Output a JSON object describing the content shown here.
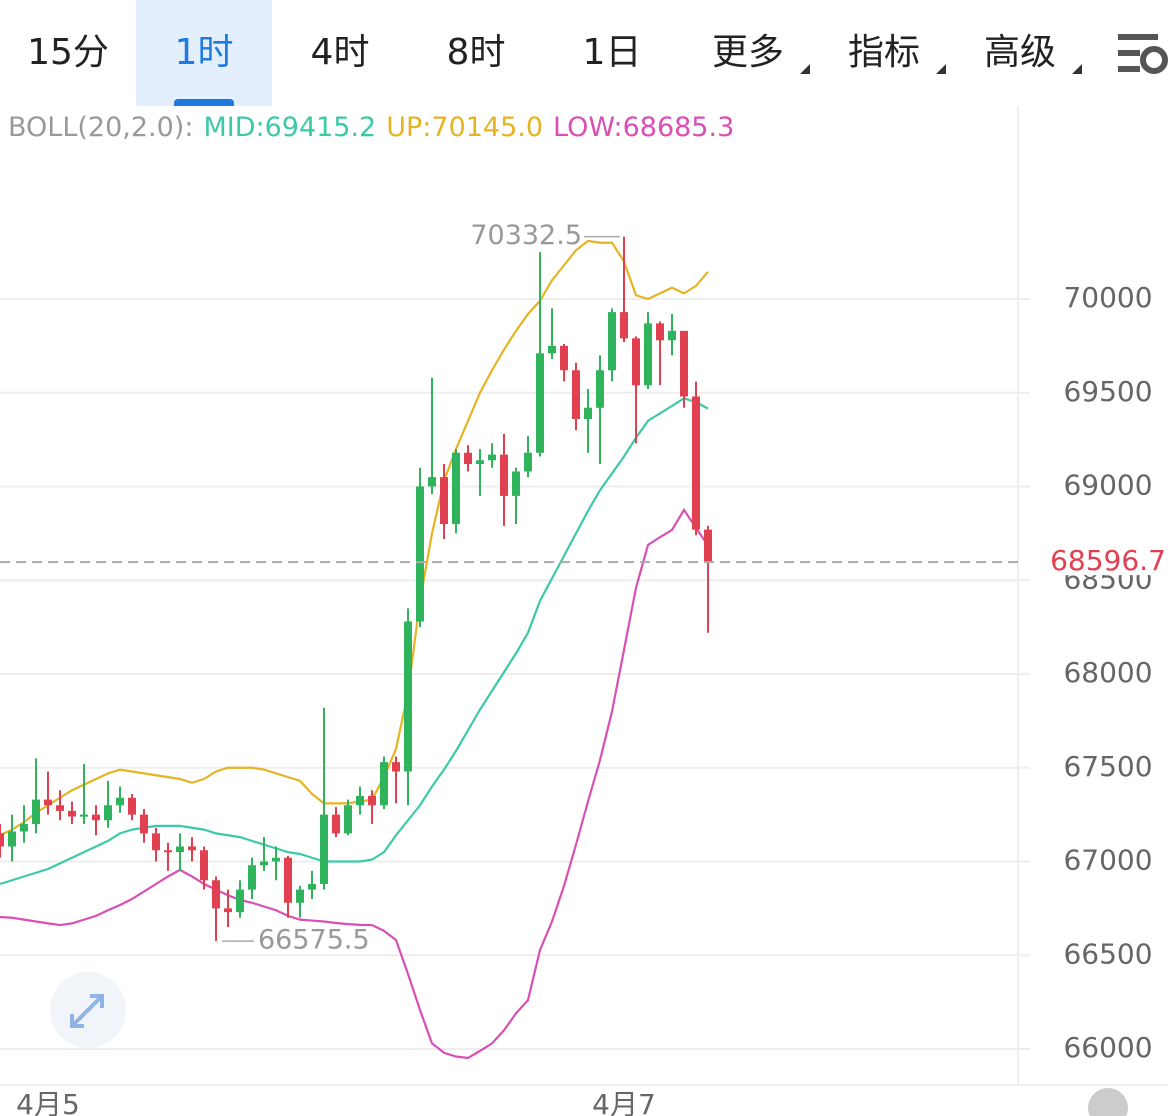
{
  "header": {
    "tabs": [
      "15分",
      "1时",
      "4时",
      "8时",
      "1日",
      "更多",
      "指标",
      "高级"
    ],
    "active_tab": 1
  },
  "chart_data": {
    "type": "candlestick",
    "indicator": "BOLL(20,2.0):",
    "categories": [
      null,
      null,
      null,
      null,
      "4月5",
      null,
      null,
      null,
      null,
      null,
      null,
      null,
      null,
      null,
      null,
      null,
      null,
      null,
      null,
      null,
      null,
      null,
      null,
      null,
      null,
      null,
      null,
      null,
      null,
      null,
      null,
      null,
      null,
      null,
      null,
      null,
      null,
      null,
      null,
      null,
      null,
      null,
      null,
      null,
      null,
      null,
      null,
      null,
      null,
      null,
      null,
      null,
      "4月7",
      null,
      null,
      null,
      null,
      null,
      null,
      null
    ],
    "open": [
      67150,
      67080,
      67160,
      67200,
      67330,
      67300,
      67270,
      67240,
      67250,
      67220,
      67300,
      67340,
      67250,
      67150,
      67060,
      67050,
      67080,
      67060,
      66900,
      66750,
      66730,
      66850,
      66980,
      67000,
      67020,
      66780,
      66850,
      66880,
      67250,
      67150,
      67300,
      67350,
      67300,
      67530,
      67480,
      68280,
      69000,
      69050,
      68800,
      69180,
      69120,
      69140,
      69170,
      68950,
      69080,
      69180,
      69710,
      69750,
      69620,
      69360,
      69420,
      69620,
      69930,
      69790,
      69540,
      69870,
      69780,
      69830,
      69480,
      68770
    ],
    "high": [
      67200,
      67250,
      67300,
      67550,
      67480,
      67380,
      67320,
      67520,
      67300,
      67430,
      67400,
      67360,
      67280,
      67180,
      67100,
      67150,
      67130,
      67080,
      66920,
      66850,
      66900,
      67020,
      67130,
      67080,
      67030,
      66870,
      66950,
      67820,
      67290,
      67330,
      67400,
      67380,
      67560,
      67560,
      68350,
      69100,
      69580,
      69120,
      69200,
      69220,
      69200,
      69230,
      69280,
      69100,
      69270,
      70250,
      69950,
      69760,
      69660,
      69520,
      69700,
      69950,
      70332.5,
      69800,
      69930,
      69880,
      69920,
      69830,
      69560,
      68790
    ],
    "low": [
      67020,
      67000,
      67100,
      67150,
      67250,
      67220,
      67200,
      67200,
      67140,
      67180,
      67260,
      67220,
      67100,
      67000,
      66950,
      66950,
      67000,
      66850,
      66575.5,
      66650,
      66700,
      66800,
      66950,
      66900,
      66700,
      66700,
      66800,
      66850,
      67130,
      67140,
      67250,
      67200,
      67280,
      67310,
      67300,
      68250,
      68960,
      68720,
      68750,
      69080,
      68950,
      69100,
      68790,
      68800,
      69050,
      69160,
      69680,
      69560,
      69300,
      69180,
      69120,
      69560,
      69770,
      69230,
      69520,
      69540,
      69700,
      69420,
      68740,
      68220
    ],
    "close": [
      67080,
      67160,
      67200,
      67330,
      67300,
      67270,
      67240,
      67250,
      67220,
      67300,
      67340,
      67250,
      67150,
      67060,
      67050,
      67080,
      67060,
      66900,
      66750,
      66730,
      66850,
      66980,
      67000,
      67020,
      66780,
      66850,
      66880,
      67250,
      67150,
      67300,
      67350,
      67300,
      67530,
      67480,
      68280,
      69000,
      69050,
      68800,
      69180,
      69120,
      69140,
      69170,
      68950,
      69080,
      69180,
      69710,
      69750,
      69620,
      69360,
      69420,
      69620,
      69930,
      69790,
      69540,
      69870,
      69780,
      69830,
      69480,
      68770,
      68596.7
    ],
    "up_color": "#2fb35c",
    "down_color": "#e0404f",
    "series": [
      {
        "name": "MID:69415.2",
        "color": "#3cc9a8",
        "values": [
          66880,
          66900,
          66920,
          66940,
          66960,
          66990,
          67020,
          67050,
          67080,
          67110,
          67150,
          67170,
          67180,
          67190,
          67190,
          67190,
          67180,
          67170,
          67150,
          67140,
          67130,
          67110,
          67090,
          67070,
          67050,
          67040,
          67020,
          67000,
          67000,
          67000,
          67000,
          67010,
          67050,
          67140,
          67220,
          67300,
          67400,
          67490,
          67590,
          67700,
          67810,
          67910,
          68010,
          68110,
          68220,
          68390,
          68510,
          68630,
          68750,
          68870,
          68980,
          69070,
          69160,
          69260,
          69350,
          69390,
          69430,
          69470,
          69450,
          69415.2
        ]
      },
      {
        "name": "UP:70145.0",
        "color": "#e6b422",
        "values": [
          67140,
          67170,
          67210,
          67260,
          67300,
          67340,
          67380,
          67410,
          67440,
          67470,
          67490,
          67480,
          67470,
          67460,
          67450,
          67440,
          67420,
          67440,
          67480,
          67500,
          67500,
          67500,
          67490,
          67470,
          67450,
          67430,
          67360,
          67310,
          67310,
          67310,
          67320,
          67330,
          67450,
          67600,
          67900,
          68390,
          68750,
          69030,
          69200,
          69350,
          69500,
          69620,
          69730,
          69830,
          69920,
          69990,
          70100,
          70180,
          70260,
          70310,
          70300,
          70300,
          70200,
          70020,
          70000,
          70030,
          70060,
          70030,
          70070,
          70145
        ]
      },
      {
        "name": "LOW:68685.3",
        "color": "#d94fb4",
        "values": [
          66704,
          66700,
          66690,
          66680,
          66670,
          66661,
          66670,
          66690,
          66710,
          66740,
          66768,
          66800,
          66840,
          66880,
          66920,
          66955,
          66920,
          66880,
          66850,
          66820,
          66795,
          66780,
          66760,
          66740,
          66710,
          66690,
          66685,
          66680,
          66672,
          66666,
          66662,
          66661,
          66630,
          66581,
          66400,
          66208,
          66030,
          65980,
          65960,
          65952,
          65990,
          66030,
          66100,
          66190,
          66261,
          66528,
          66680,
          66870,
          67090,
          67320,
          67541,
          67800,
          68128,
          68460,
          68688,
          68730,
          68768,
          68875,
          68779,
          68685.3
        ]
      }
    ],
    "ylim": [
      65800,
      71000
    ],
    "yticks": [
      66000,
      66500,
      67000,
      67500,
      68000,
      68500,
      69000,
      69500,
      70000
    ],
    "grid": true,
    "last_price": 68596.7,
    "max_label": 70332.5,
    "min_label": 66575.5
  }
}
